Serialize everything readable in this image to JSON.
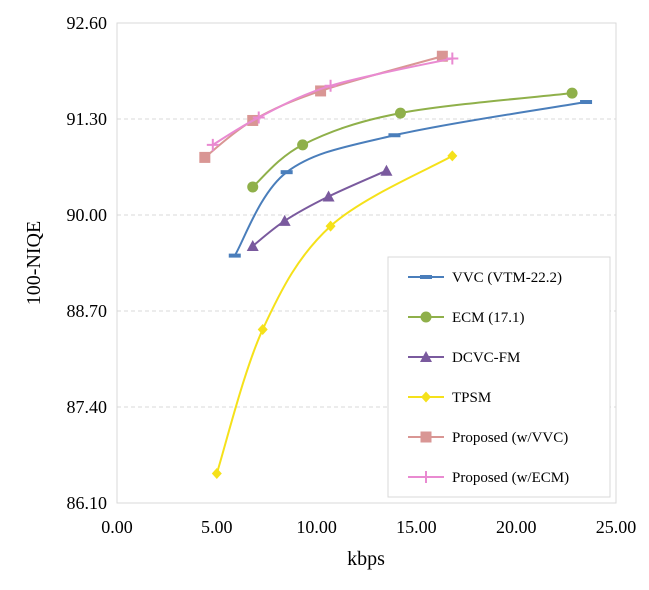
{
  "chart_data": {
    "type": "line",
    "title": "",
    "xlabel": "kbps",
    "ylabel": "100-NIQE",
    "xlim": [
      0,
      25
    ],
    "ylim": [
      86.1,
      92.6
    ],
    "xticks": [
      0,
      5,
      10,
      15,
      20,
      25
    ],
    "yticks": [
      86.1,
      87.4,
      88.7,
      90.0,
      91.3,
      92.6
    ],
    "xtick_labels": [
      "0.00",
      "5.00",
      "10.00",
      "15.00",
      "20.00",
      "25.00"
    ],
    "ytick_labels": [
      "86.10",
      "87.40",
      "88.70",
      "90.00",
      "91.30",
      "92.60"
    ],
    "grid": "horizontal-dashed",
    "legend_position": "bottom-right",
    "series": [
      {
        "name": "VVC (VTM-22.2)",
        "color": "#4a7ebb",
        "marker": "dash",
        "x": [
          5.9,
          8.5,
          13.9,
          23.5
        ],
        "y": [
          89.45,
          90.58,
          91.08,
          91.53
        ]
      },
      {
        "name": "ECM (17.1)",
        "color": "#8fb04a",
        "marker": "circle",
        "x": [
          6.8,
          9.3,
          14.2,
          22.8
        ],
        "y": [
          90.38,
          90.95,
          91.38,
          91.65
        ]
      },
      {
        "name": "DCVC-FM",
        "color": "#7a5a9e",
        "marker": "triangle",
        "x": [
          6.8,
          8.4,
          10.6,
          13.5
        ],
        "y": [
          89.58,
          89.92,
          90.25,
          90.6
        ]
      },
      {
        "name": "TPSM",
        "color": "#f5e11a",
        "marker": "diamond",
        "x": [
          5.0,
          7.3,
          10.7,
          16.8
        ],
        "y": [
          86.5,
          88.45,
          89.85,
          90.8
        ]
      },
      {
        "name": "Proposed (w/VVC)",
        "color": "#d99694",
        "marker": "square",
        "x": [
          4.4,
          6.8,
          10.2,
          16.3
        ],
        "y": [
          90.78,
          91.28,
          91.68,
          92.15
        ]
      },
      {
        "name": "Proposed (w/ECM)",
        "color": "#e98ad1",
        "marker": "plus",
        "x": [
          4.8,
          7.1,
          10.7,
          16.8
        ],
        "y": [
          90.95,
          91.32,
          91.75,
          92.12
        ]
      }
    ]
  }
}
